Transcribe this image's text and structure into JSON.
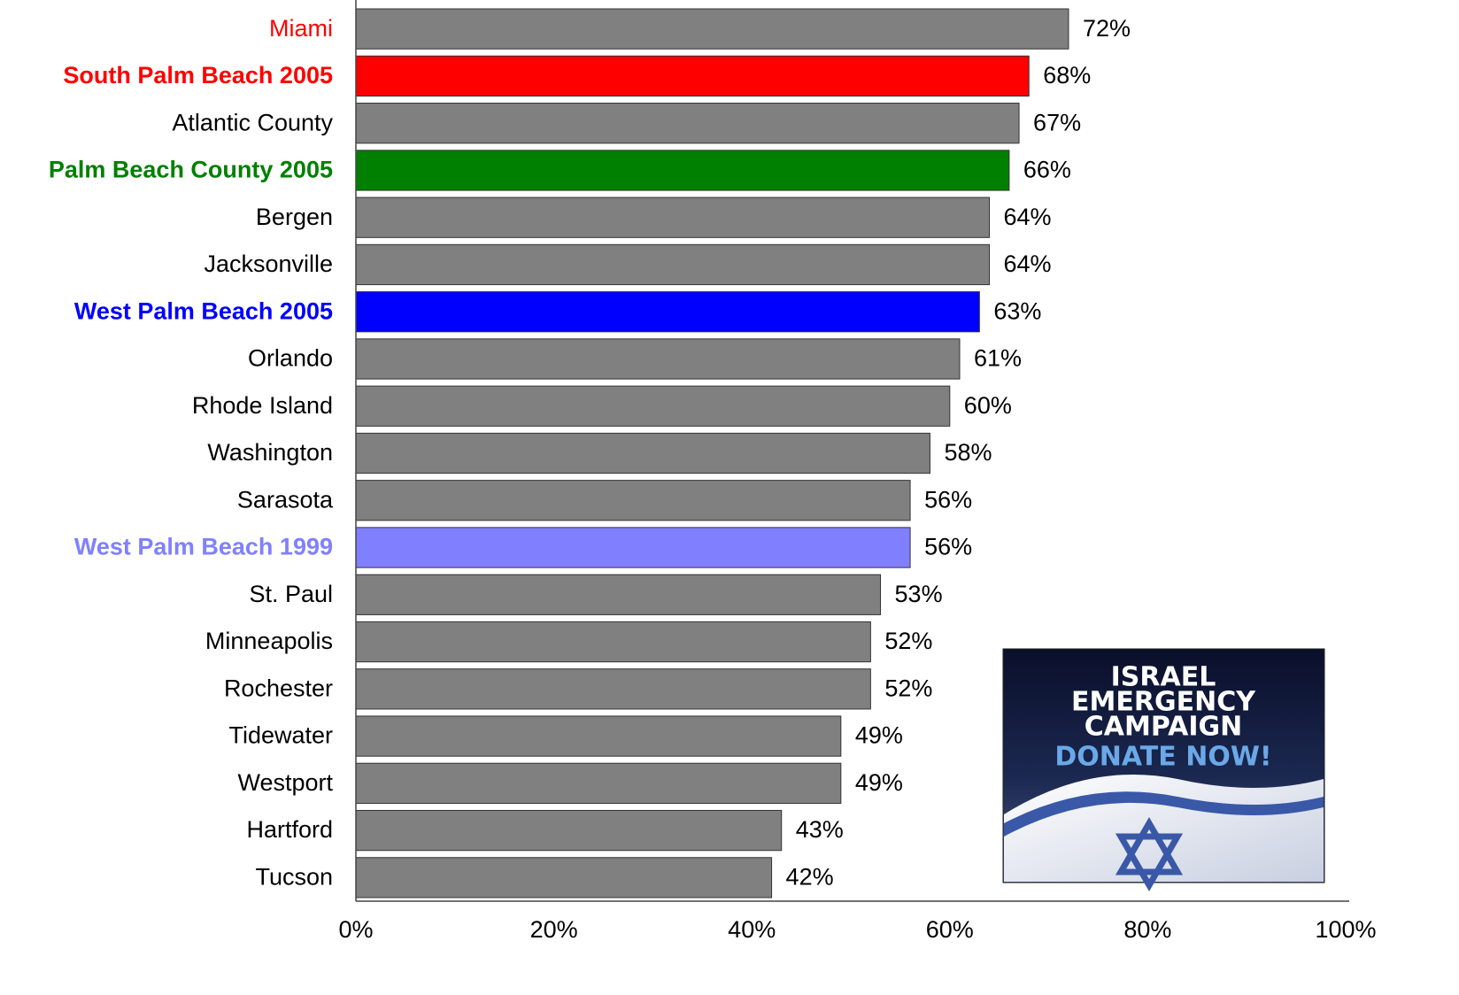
{
  "chart_data": {
    "type": "barh",
    "categories": [
      "Miami",
      "South Palm Beach 2005",
      "Atlantic County",
      "Palm Beach County 2005",
      "Bergen",
      "Jacksonville",
      "West Palm Beach 2005",
      "Orlando",
      "Rhode Island",
      "Washington",
      "Sarasota",
      "West Palm Beach 1999",
      "St. Paul",
      "Minneapolis",
      "Rochester",
      "Tidewater",
      "Westport",
      "Hartford",
      "Tucson"
    ],
    "values": [
      72,
      68,
      67,
      66,
      64,
      64,
      63,
      61,
      60,
      58,
      56,
      56,
      53,
      52,
      52,
      49,
      49,
      43,
      42
    ],
    "value_labels": [
      "72%",
      "68%",
      "67%",
      "66%",
      "64%",
      "64%",
      "63%",
      "61%",
      "60%",
      "58%",
      "56%",
      "56%",
      "53%",
      "52%",
      "52%",
      "49%",
      "49%",
      "43%",
      "42%"
    ],
    "colors": [
      "#808080",
      "#ff0000",
      "#808080",
      "#008000",
      "#808080",
      "#808080",
      "#0000ff",
      "#808080",
      "#808080",
      "#808080",
      "#808080",
      "#8080ff",
      "#808080",
      "#808080",
      "#808080",
      "#808080",
      "#808080",
      "#808080",
      "#808080"
    ],
    "label_colors": [
      "#ff0000",
      "#ff0000",
      "#000000",
      "#008000",
      "#000000",
      "#000000",
      "#0000ff",
      "#000000",
      "#000000",
      "#000000",
      "#000000",
      "#8080ff",
      "#000000",
      "#000000",
      "#000000",
      "#000000",
      "#000000",
      "#000000",
      "#000000"
    ],
    "label_bold": [
      false,
      true,
      false,
      true,
      false,
      false,
      true,
      false,
      false,
      false,
      false,
      true,
      false,
      false,
      false,
      false,
      false,
      false,
      false
    ],
    "xlim": [
      0,
      100
    ],
    "xticks": [
      {
        "value": 0,
        "label": "0%"
      },
      {
        "value": 20,
        "label": "20%"
      },
      {
        "value": 40,
        "label": "40%"
      },
      {
        "value": 60,
        "label": "60%"
      },
      {
        "value": 80,
        "label": "80%"
      },
      {
        "value": 100,
        "label": "100%"
      }
    ],
    "grid": false
  },
  "ad": {
    "lines": [
      "ISRAEL",
      "EMERGENCY",
      "CAMPAIGN"
    ],
    "cta": "DONATE NOW!"
  }
}
